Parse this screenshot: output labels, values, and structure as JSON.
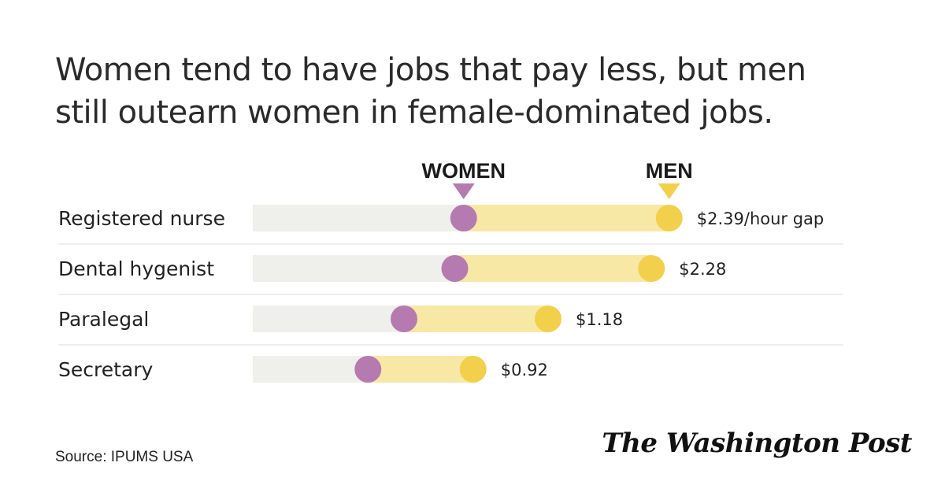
{
  "chart_data": {
    "type": "dumbbell",
    "title": "Women tend to have jobs that pay less, but men still outearn women in female-dominated jobs.",
    "legend": [
      "WOMEN",
      "MEN"
    ],
    "categories": [
      "Registered nurse",
      "Dental hygenist",
      "Paralegal",
      "Secretary"
    ],
    "gap_labels": [
      "$2.39/hour gap",
      "$2.28",
      "$1.18",
      "$0.92"
    ],
    "series": [
      {
        "name": "WOMEN",
        "values": [
          0.357,
          0.342,
          0.256,
          0.195
        ]
      },
      {
        "name": "MEN",
        "values": [
          0.705,
          0.675,
          0.5,
          0.373
        ]
      }
    ],
    "unit": "relative position on hourly-wage scale (no axis shown)",
    "colors": {
      "women": "#b57aaf",
      "men": "#f2d04b",
      "track": "#efefeb",
      "gap": "#f8e8a6",
      "divider": "#e3e3e3"
    }
  },
  "source": "Source: IPUMS USA",
  "publisher": "The Washington Post"
}
